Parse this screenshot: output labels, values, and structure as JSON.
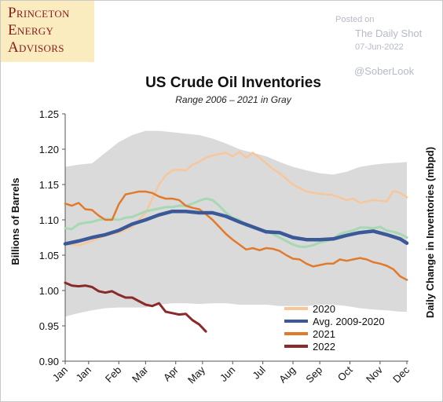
{
  "logo": {
    "lines": [
      "Princeton",
      "Energy",
      "Advisors"
    ]
  },
  "credit": {
    "posted_on": "Posted on",
    "source": "The Daily Shot",
    "date": "07-Jun-2022",
    "handle": "@SoberLook"
  },
  "chart_data": {
    "type": "line",
    "title": "US Crude Oil Inventories",
    "subtitle": "Range 2006 – 2021 in Gray",
    "ylabel": "Billions of Barrels",
    "y2label": "Daily Change in Inventories (mbpd)",
    "ylim": [
      0.9,
      1.25
    ],
    "yticks": [
      "1.25",
      "1.20",
      "1.15",
      "1.10",
      "1.05",
      "1.00",
      "0.95",
      "0.90"
    ],
    "xlim": [
      1,
      52
    ],
    "xticks": [
      {
        "label": "Jan",
        "week": 1
      },
      {
        "label": "Jan",
        "week": 4.5
      },
      {
        "label": "Feb",
        "week": 9
      },
      {
        "label": "Mar",
        "week": 13
      },
      {
        "label": "Apr",
        "week": 17.5
      },
      {
        "label": "May",
        "week": 21.5
      },
      {
        "label": "Jun",
        "week": 26
      },
      {
        "label": "Jul",
        "week": 30.5
      },
      {
        "label": "Aug",
        "week": 35
      },
      {
        "label": "Sep",
        "week": 39
      },
      {
        "label": "Oct",
        "week": 43.5
      },
      {
        "label": "Nov",
        "week": 48
      },
      {
        "label": "Dec",
        "week": 52
      }
    ],
    "range_2006_2021": {
      "color": "#dadada",
      "x": [
        1,
        3,
        5,
        7,
        9,
        11,
        13,
        15,
        17,
        19,
        21,
        23,
        25,
        27,
        29,
        31,
        33,
        35,
        37,
        39,
        41,
        43,
        45,
        47,
        49,
        51,
        52
      ],
      "upper": [
        1.175,
        1.178,
        1.18,
        1.195,
        1.21,
        1.22,
        1.226,
        1.226,
        1.224,
        1.222,
        1.22,
        1.215,
        1.208,
        1.2,
        1.195,
        1.19,
        1.182,
        1.175,
        1.17,
        1.166,
        1.164,
        1.168,
        1.175,
        1.178,
        1.18,
        1.181,
        1.182
      ],
      "lower": [
        0.963,
        0.968,
        0.972,
        0.975,
        0.976,
        0.976,
        0.976,
        0.98,
        0.982,
        0.982,
        0.981,
        0.982,
        0.982,
        0.98,
        0.98,
        0.98,
        0.978,
        0.978,
        0.978,
        0.98,
        0.98,
        0.978,
        0.975,
        0.973,
        0.972,
        0.97,
        0.97
      ]
    },
    "series": [
      {
        "name": "2020",
        "color": "#f8c69b",
        "width": 2.5,
        "x": [
          1,
          3,
          5,
          7,
          9,
          11,
          13,
          14,
          15,
          16,
          17,
          18,
          19,
          20,
          21,
          22,
          23,
          24,
          25,
          26,
          27,
          28,
          29,
          30,
          31,
          32,
          33,
          34,
          35,
          37,
          39,
          41,
          43,
          44,
          45,
          47,
          49,
          50,
          51,
          52
        ],
        "y": [
          1.066,
          1.064,
          1.07,
          1.078,
          1.082,
          1.09,
          1.11,
          1.13,
          1.15,
          1.163,
          1.17,
          1.171,
          1.17,
          1.178,
          1.182,
          1.188,
          1.191,
          1.193,
          1.195,
          1.19,
          1.196,
          1.188,
          1.195,
          1.188,
          1.18,
          1.172,
          1.166,
          1.158,
          1.15,
          1.14,
          1.137,
          1.135,
          1.128,
          1.13,
          1.124,
          1.128,
          1.126,
          1.141,
          1.138,
          1.132
        ]
      },
      {
        "name": "2021",
        "color": "#e27a2b",
        "width": 2.5,
        "x": [
          1,
          2,
          3,
          4,
          5,
          6,
          7,
          8,
          9,
          10,
          11,
          12,
          13,
          14,
          15,
          16,
          17,
          18,
          19,
          20,
          21,
          22,
          23,
          24,
          25,
          26,
          27,
          28,
          29,
          30,
          31,
          32,
          33,
          34,
          35,
          36,
          37,
          38,
          39,
          40,
          41,
          42,
          43,
          44,
          45,
          46,
          47,
          48,
          49,
          50,
          51,
          52
        ],
        "y": [
          1.123,
          1.12,
          1.124,
          1.115,
          1.114,
          1.106,
          1.1,
          1.1,
          1.122,
          1.136,
          1.138,
          1.14,
          1.14,
          1.138,
          1.133,
          1.13,
          1.13,
          1.128,
          1.12,
          1.117,
          1.115,
          1.108,
          1.1,
          1.09,
          1.08,
          1.072,
          1.065,
          1.058,
          1.06,
          1.057,
          1.06,
          1.059,
          1.056,
          1.05,
          1.045,
          1.044,
          1.038,
          1.034,
          1.036,
          1.038,
          1.038,
          1.044,
          1.042,
          1.044,
          1.046,
          1.044,
          1.04,
          1.038,
          1.035,
          1.03,
          1.02,
          1.015
        ]
      },
      {
        "name": "2022",
        "color": "#8b2a2a",
        "width": 3,
        "x": [
          1,
          2,
          3,
          4,
          5,
          6,
          7,
          8,
          9,
          10,
          11,
          12,
          13,
          14,
          15,
          16,
          17,
          18,
          19,
          20,
          21,
          22
        ],
        "y": [
          1.011,
          1.007,
          1.006,
          1.007,
          1.005,
          0.999,
          0.997,
          0.999,
          0.994,
          0.99,
          0.99,
          0.985,
          0.98,
          0.978,
          0.982,
          0.97,
          0.968,
          0.966,
          0.967,
          0.958,
          0.952,
          0.942
        ]
      },
      {
        "name": "Avg. 2009-2020",
        "color": "#3b5998",
        "width": 4.5,
        "x": [
          1,
          3,
          5,
          7,
          9,
          11,
          13,
          15,
          17,
          19,
          21,
          23,
          25,
          27,
          29,
          31,
          33,
          35,
          37,
          39,
          41,
          43,
          45,
          47,
          49,
          51,
          52
        ],
        "y": [
          1.066,
          1.07,
          1.075,
          1.079,
          1.085,
          1.094,
          1.1,
          1.107,
          1.112,
          1.112,
          1.11,
          1.11,
          1.105,
          1.097,
          1.09,
          1.083,
          1.082,
          1.075,
          1.072,
          1.072,
          1.073,
          1.078,
          1.082,
          1.084,
          1.079,
          1.073,
          1.067
        ]
      }
    ],
    "overlay_series": {
      "name": "Avg. 2009-2020 (light)",
      "color": "#a7d8b4",
      "width": 3,
      "x": [
        1,
        2,
        3,
        4,
        5,
        6,
        7,
        8,
        9,
        10,
        11,
        12,
        13,
        14,
        15,
        16,
        17,
        18,
        19,
        20,
        21,
        22,
        23,
        24,
        25,
        26,
        27,
        28,
        29,
        30,
        31,
        32,
        33,
        34,
        35,
        36,
        37,
        38,
        39,
        40,
        41,
        42,
        43,
        44,
        45,
        46,
        47,
        48,
        49,
        50,
        51,
        52
      ],
      "y": [
        1.088,
        1.087,
        1.094,
        1.096,
        1.097,
        1.1,
        1.101,
        1.101,
        1.1,
        1.103,
        1.104,
        1.108,
        1.112,
        1.114,
        1.116,
        1.118,
        1.118,
        1.12,
        1.12,
        1.123,
        1.127,
        1.13,
        1.128,
        1.12,
        1.11,
        1.103,
        1.1,
        1.092,
        1.09,
        1.086,
        1.084,
        1.08,
        1.075,
        1.07,
        1.065,
        1.062,
        1.062,
        1.064,
        1.068,
        1.07,
        1.073,
        1.08,
        1.083,
        1.085,
        1.089,
        1.089,
        1.088,
        1.09,
        1.085,
        1.083,
        1.08,
        1.075
      ]
    },
    "legend": {
      "placement": "bottom-right",
      "items": [
        {
          "label": "2020",
          "color": "#f8c69b"
        },
        {
          "label": "Avg. 2009-2020",
          "color": "#3b5998"
        },
        {
          "label": "2021",
          "color": "#e27a2b"
        },
        {
          "label": "2022",
          "color": "#8b2a2a"
        }
      ]
    },
    "grid": false
  }
}
